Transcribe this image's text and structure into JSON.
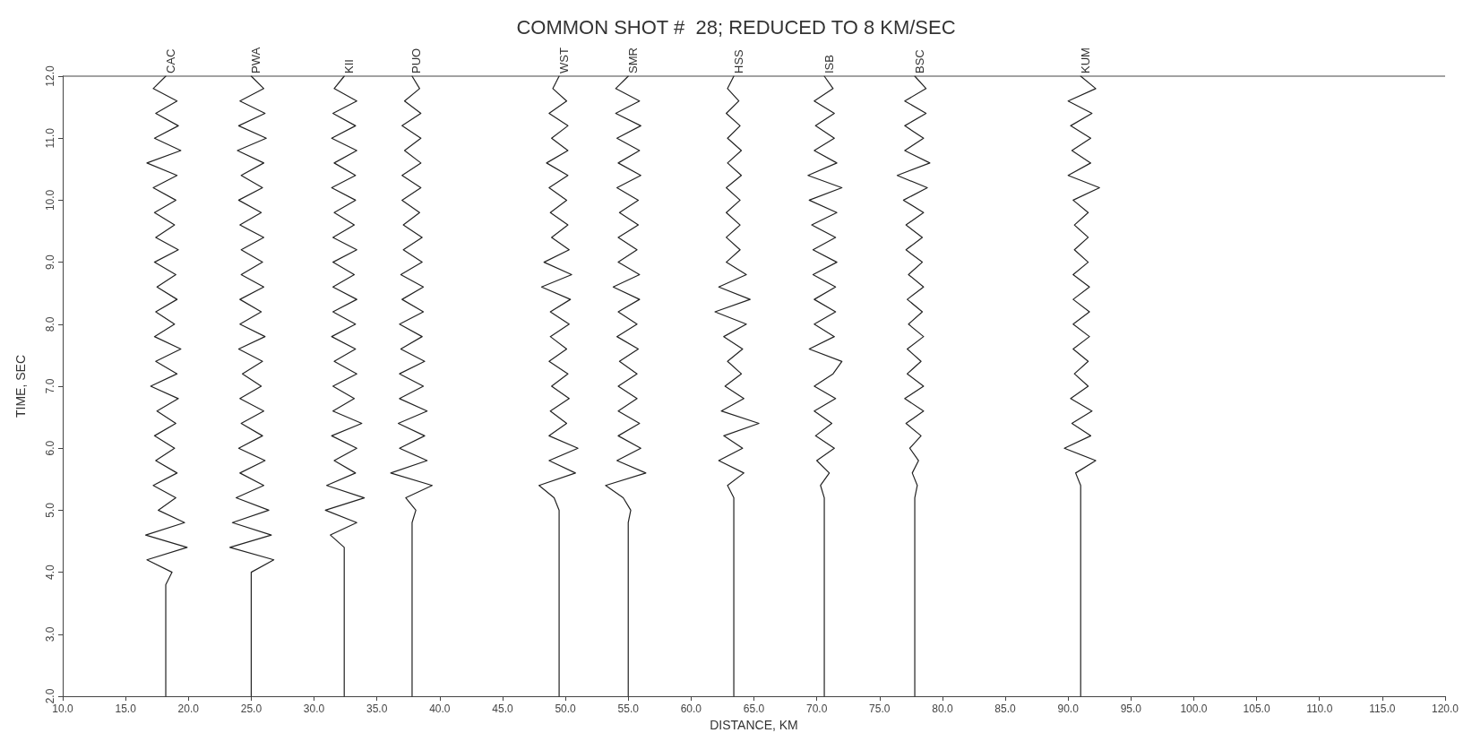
{
  "chart_data": {
    "type": "line",
    "title": "COMMON SHOT #  28; REDUCED TO 8 KM/SEC",
    "xlabel": "DISTANCE, KM",
    "ylabel": "TIME, SEC",
    "xlim": [
      10,
      120
    ],
    "xticks": [
      {
        "value": 10,
        "label": "10.0"
      },
      {
        "value": 15,
        "label": "15.0"
      },
      {
        "value": 20,
        "label": "20.0"
      },
      {
        "value": 25,
        "label": "25.0"
      },
      {
        "value": 30,
        "label": "30.0"
      },
      {
        "value": 35,
        "label": "35.0"
      },
      {
        "value": 40,
        "label": "40.0"
      },
      {
        "value": 45,
        "label": "45.0"
      },
      {
        "value": 50,
        "label": "50.0"
      },
      {
        "value": 55,
        "label": "55.0"
      },
      {
        "value": 60,
        "label": "60.0"
      },
      {
        "value": 65,
        "label": "65.0"
      },
      {
        "value": 70,
        "label": "70.0"
      },
      {
        "value": 75,
        "label": "75.0"
      },
      {
        "value": 80,
        "label": "80.0"
      },
      {
        "value": 85,
        "label": "85.0"
      },
      {
        "value": 90,
        "label": "90.0"
      },
      {
        "value": 95,
        "label": "95.0"
      },
      {
        "value": 100,
        "label": "100.0"
      },
      {
        "value": 105,
        "label": "105.0"
      },
      {
        "value": 110,
        "label": "110.0"
      },
      {
        "value": 115,
        "label": "115.0"
      },
      {
        "value": 120,
        "label": "120.0"
      }
    ],
    "ylim": [
      2,
      12
    ],
    "yticks": [
      {
        "value": 2,
        "label": "2.0"
      },
      {
        "value": 3,
        "label": "3.0"
      },
      {
        "value": 4,
        "label": "4.0"
      },
      {
        "value": 5,
        "label": "5.0"
      },
      {
        "value": 6,
        "label": "6.0"
      },
      {
        "value": 7,
        "label": "7.0"
      },
      {
        "value": 8,
        "label": "8.0"
      },
      {
        "value": 9,
        "label": "9.0"
      },
      {
        "value": 10,
        "label": "10.0"
      },
      {
        "value": 11,
        "label": "11.0"
      },
      {
        "value": 12,
        "label": "12.0"
      }
    ],
    "grid": false,
    "legend": false,
    "marker": "none",
    "line_style": "solid",
    "series": [
      {
        "name": "CAC",
        "color": "#222222",
        "x": [
          18.2,
          18.2,
          18.7,
          16.7,
          19.9,
          16.6,
          19.7,
          17.6,
          19.0,
          17.2,
          19.1,
          17.4,
          18.9,
          17.3,
          19.0,
          17.5,
          19.2,
          17.0,
          19.1,
          17.4,
          19.4,
          17.3,
          18.9,
          17.4,
          19.1,
          17.5,
          19.0,
          17.3,
          19.2,
          17.4,
          18.9,
          17.3,
          19.0,
          17.2,
          19.1,
          16.7,
          19.4,
          17.3,
          19.2,
          17.4,
          19.1,
          17.2,
          18.2
        ],
        "values": [
          2.0,
          3.8,
          4.0,
          4.2,
          4.4,
          4.6,
          4.8,
          5.0,
          5.2,
          5.4,
          5.6,
          5.8,
          6.0,
          6.2,
          6.4,
          6.6,
          6.8,
          7.0,
          7.2,
          7.4,
          7.6,
          7.8,
          8.0,
          8.2,
          8.4,
          8.6,
          8.8,
          9.0,
          9.2,
          9.4,
          9.6,
          9.8,
          10.0,
          10.2,
          10.4,
          10.6,
          10.8,
          11.0,
          11.2,
          11.4,
          11.6,
          11.8,
          12.0
        ]
      },
      {
        "name": "PWA",
        "color": "#222222",
        "x": [
          25.0,
          25.0,
          25.0,
          26.8,
          23.3,
          26.6,
          23.5,
          26.4,
          23.8,
          26.0,
          24.1,
          26.1,
          24.0,
          25.9,
          24.2,
          26.0,
          24.1,
          25.8,
          24.3,
          25.9,
          24.0,
          26.1,
          24.1,
          25.8,
          24.1,
          26.0,
          24.2,
          25.9,
          24.2,
          26.0,
          24.1,
          25.8,
          24.0,
          25.9,
          24.2,
          26.0,
          23.9,
          26.2,
          24.0,
          26.1,
          24.1,
          26.0,
          25.0
        ],
        "values": [
          2.0,
          3.8,
          4.0,
          4.2,
          4.4,
          4.6,
          4.8,
          5.0,
          5.2,
          5.4,
          5.6,
          5.8,
          6.0,
          6.2,
          6.4,
          6.6,
          6.8,
          7.0,
          7.2,
          7.4,
          7.6,
          7.8,
          8.0,
          8.2,
          8.4,
          8.6,
          8.8,
          9.0,
          9.2,
          9.4,
          9.6,
          9.8,
          10.0,
          10.2,
          10.4,
          10.6,
          10.8,
          11.0,
          11.2,
          11.4,
          11.6,
          11.8,
          12.0
        ]
      },
      {
        "name": "KII",
        "color": "#222222",
        "x": [
          32.4,
          32.4,
          32.4,
          32.4,
          32.4,
          31.3,
          33.4,
          30.9,
          34.0,
          31.0,
          33.3,
          31.6,
          33.4,
          31.4,
          33.8,
          31.5,
          33.2,
          31.5,
          33.4,
          31.6,
          33.3,
          31.4,
          33.3,
          31.5,
          33.4,
          31.5,
          33.2,
          31.5,
          33.4,
          31.5,
          33.2,
          31.6,
          33.3,
          31.4,
          33.3,
          31.6,
          33.4,
          31.4,
          33.3,
          31.5,
          33.4,
          31.6,
          32.4
        ],
        "values": [
          2.0,
          3.8,
          4.0,
          4.2,
          4.4,
          4.6,
          4.8,
          5.0,
          5.2,
          5.4,
          5.6,
          5.8,
          6.0,
          6.2,
          6.4,
          6.6,
          6.8,
          7.0,
          7.2,
          7.4,
          7.6,
          7.8,
          8.0,
          8.2,
          8.4,
          8.6,
          8.8,
          9.0,
          9.2,
          9.4,
          9.6,
          9.8,
          10.0,
          10.2,
          10.4,
          10.6,
          10.8,
          11.0,
          11.2,
          11.4,
          11.6,
          11.8,
          12.0
        ]
      },
      {
        "name": "PUO",
        "color": "#222222",
        "x": [
          37.8,
          37.8,
          37.8,
          37.8,
          37.8,
          37.8,
          37.8,
          38.1,
          37.3,
          39.4,
          36.1,
          39.0,
          36.8,
          38.8,
          36.7,
          39.0,
          36.8,
          38.7,
          36.8,
          38.8,
          36.9,
          38.6,
          36.8,
          38.7,
          37.0,
          38.7,
          36.9,
          38.6,
          37.1,
          38.6,
          37.1,
          38.4,
          37.0,
          38.5,
          37.0,
          38.5,
          37.2,
          38.5,
          37.0,
          38.5,
          37.2,
          38.4,
          37.8
        ],
        "values": [
          2.0,
          3.8,
          4.0,
          4.2,
          4.4,
          4.6,
          4.8,
          5.0,
          5.2,
          5.4,
          5.6,
          5.8,
          6.0,
          6.2,
          6.4,
          6.6,
          6.8,
          7.0,
          7.2,
          7.4,
          7.6,
          7.8,
          8.0,
          8.2,
          8.4,
          8.6,
          8.8,
          9.0,
          9.2,
          9.4,
          9.6,
          9.8,
          10.0,
          10.2,
          10.4,
          10.6,
          10.8,
          11.0,
          11.2,
          11.4,
          11.6,
          11.8,
          12.0
        ]
      },
      {
        "name": "WST",
        "color": "#222222",
        "x": [
          49.5,
          49.5,
          49.5,
          49.5,
          49.5,
          49.5,
          49.5,
          49.5,
          49.1,
          47.9,
          50.8,
          48.7,
          51.0,
          48.7,
          50.1,
          48.8,
          50.3,
          48.9,
          50.2,
          48.7,
          50.1,
          48.8,
          50.3,
          48.8,
          50.4,
          48.1,
          50.5,
          48.3,
          50.3,
          48.9,
          50.2,
          48.8,
          50.1,
          48.7,
          50.2,
          48.5,
          50.2,
          48.9,
          50.2,
          48.7,
          50.1,
          49.0,
          49.5
        ],
        "values": [
          2.0,
          3.8,
          4.0,
          4.2,
          4.4,
          4.6,
          4.8,
          5.0,
          5.2,
          5.4,
          5.6,
          5.8,
          6.0,
          6.2,
          6.4,
          6.6,
          6.8,
          7.0,
          7.2,
          7.4,
          7.6,
          7.8,
          8.0,
          8.2,
          8.4,
          8.6,
          8.8,
          9.0,
          9.2,
          9.4,
          9.6,
          9.8,
          10.0,
          10.2,
          10.4,
          10.6,
          10.8,
          11.0,
          11.2,
          11.4,
          11.6,
          11.8,
          12.0
        ]
      },
      {
        "name": "SMR",
        "color": "#222222",
        "x": [
          55.0,
          55.0,
          55.0,
          55.0,
          55.0,
          55.0,
          55.0,
          55.2,
          54.6,
          53.2,
          56.4,
          54.1,
          56.0,
          54.2,
          55.9,
          54.2,
          55.7,
          54.2,
          55.7,
          54.3,
          55.8,
          54.1,
          55.7,
          54.2,
          55.9,
          53.8,
          55.9,
          54.2,
          55.7,
          54.2,
          55.8,
          54.3,
          55.8,
          54.1,
          56.0,
          54.2,
          55.9,
          54.1,
          56.0,
          54.0,
          55.9,
          54.0,
          55.0
        ],
        "values": [
          2.0,
          3.8,
          4.0,
          4.2,
          4.4,
          4.6,
          4.8,
          5.0,
          5.2,
          5.4,
          5.6,
          5.8,
          6.0,
          6.2,
          6.4,
          6.6,
          6.8,
          7.0,
          7.2,
          7.4,
          7.6,
          7.8,
          8.0,
          8.2,
          8.4,
          8.6,
          8.8,
          9.0,
          9.2,
          9.4,
          9.6,
          9.8,
          10.0,
          10.2,
          10.4,
          10.6,
          10.8,
          11.0,
          11.2,
          11.4,
          11.6,
          11.8,
          12.0
        ]
      },
      {
        "name": "HSS",
        "color": "#222222",
        "x": [
          63.4,
          63.4,
          63.4,
          63.4,
          63.4,
          63.4,
          63.4,
          63.4,
          63.4,
          62.9,
          64.2,
          62.2,
          64.1,
          62.6,
          65.4,
          62.4,
          64.2,
          62.7,
          64.0,
          62.9,
          64.1,
          62.6,
          64.4,
          61.9,
          64.7,
          62.2,
          64.4,
          62.8,
          63.9,
          62.8,
          63.9,
          62.8,
          63.9,
          62.8,
          64.0,
          62.9,
          64.0,
          62.9,
          63.9,
          62.8,
          63.8,
          62.9,
          63.4
        ],
        "values": [
          2.0,
          3.8,
          4.0,
          4.2,
          4.4,
          4.6,
          4.8,
          5.0,
          5.2,
          5.4,
          5.6,
          5.8,
          6.0,
          6.2,
          6.4,
          6.6,
          6.8,
          7.0,
          7.2,
          7.4,
          7.6,
          7.8,
          8.0,
          8.2,
          8.4,
          8.6,
          8.8,
          9.0,
          9.2,
          9.4,
          9.6,
          9.8,
          10.0,
          10.2,
          10.4,
          10.6,
          10.8,
          11.0,
          11.2,
          11.4,
          11.6,
          11.8,
          12.0
        ]
      },
      {
        "name": "ISB",
        "color": "#222222",
        "x": [
          70.6,
          70.6,
          70.6,
          70.6,
          70.6,
          70.6,
          70.6,
          70.6,
          70.6,
          70.3,
          71.0,
          70.0,
          71.4,
          69.9,
          71.2,
          69.8,
          71.5,
          69.8,
          71.3,
          72.0,
          69.4,
          71.4,
          69.8,
          71.5,
          69.8,
          71.5,
          69.7,
          71.6,
          69.7,
          71.5,
          69.6,
          71.6,
          69.4,
          72.0,
          69.3,
          71.6,
          69.8,
          71.4,
          69.9,
          71.4,
          69.8,
          71.3,
          70.6
        ],
        "values": [
          2.0,
          3.8,
          4.0,
          4.2,
          4.4,
          4.6,
          4.8,
          5.0,
          5.2,
          5.4,
          5.6,
          5.8,
          6.0,
          6.2,
          6.4,
          6.6,
          6.8,
          7.0,
          7.2,
          7.4,
          7.6,
          7.8,
          8.0,
          8.2,
          8.4,
          8.6,
          8.8,
          9.0,
          9.2,
          9.4,
          9.6,
          9.8,
          10.0,
          10.2,
          10.4,
          10.6,
          10.8,
          11.0,
          11.2,
          11.4,
          11.6,
          11.8,
          12.0
        ]
      },
      {
        "name": "BSC",
        "color": "#222222",
        "x": [
          77.8,
          77.8,
          77.8,
          77.8,
          77.8,
          77.8,
          77.8,
          77.8,
          77.8,
          78.0,
          77.6,
          78.1,
          77.4,
          78.3,
          77.1,
          78.5,
          77.0,
          78.5,
          77.2,
          78.3,
          77.2,
          78.5,
          77.3,
          78.4,
          77.2,
          78.5,
          77.3,
          78.4,
          77.1,
          78.4,
          77.1,
          78.5,
          76.9,
          78.8,
          76.4,
          79.0,
          77.0,
          78.5,
          77.0,
          78.7,
          77.0,
          78.7,
          77.8
        ],
        "values": [
          2.0,
          3.8,
          4.0,
          4.2,
          4.4,
          4.6,
          4.8,
          5.0,
          5.2,
          5.4,
          5.6,
          5.8,
          6.0,
          6.2,
          6.4,
          6.6,
          6.8,
          7.0,
          7.2,
          7.4,
          7.6,
          7.8,
          8.0,
          8.2,
          8.4,
          8.6,
          8.8,
          9.0,
          9.2,
          9.4,
          9.6,
          9.8,
          10.0,
          10.2,
          10.4,
          10.6,
          10.8,
          11.0,
          11.2,
          11.4,
          11.6,
          11.8,
          12.0
        ]
      },
      {
        "name": "KUM",
        "color": "#222222",
        "x": [
          91.0,
          91.0,
          91.0,
          91.0,
          91.0,
          91.0,
          91.0,
          91.0,
          91.0,
          91.0,
          90.6,
          92.2,
          89.7,
          91.8,
          90.3,
          91.9,
          90.2,
          91.6,
          90.5,
          91.6,
          90.4,
          91.7,
          90.4,
          91.7,
          90.4,
          91.7,
          90.4,
          91.6,
          90.5,
          91.6,
          90.5,
          91.6,
          90.4,
          92.5,
          90.0,
          91.8,
          90.3,
          91.8,
          90.2,
          91.9,
          90.0,
          92.2,
          91.0
        ],
        "values": [
          2.0,
          3.8,
          4.0,
          4.2,
          4.4,
          4.6,
          4.8,
          5.0,
          5.2,
          5.4,
          5.6,
          5.8,
          6.0,
          6.2,
          6.4,
          6.6,
          6.8,
          7.0,
          7.2,
          7.4,
          7.6,
          7.8,
          8.0,
          8.2,
          8.4,
          8.6,
          8.8,
          9.0,
          9.2,
          9.4,
          9.6,
          9.8,
          10.0,
          10.2,
          10.4,
          10.6,
          10.8,
          11.0,
          11.2,
          11.4,
          11.6,
          11.8,
          12.0
        ]
      }
    ]
  }
}
